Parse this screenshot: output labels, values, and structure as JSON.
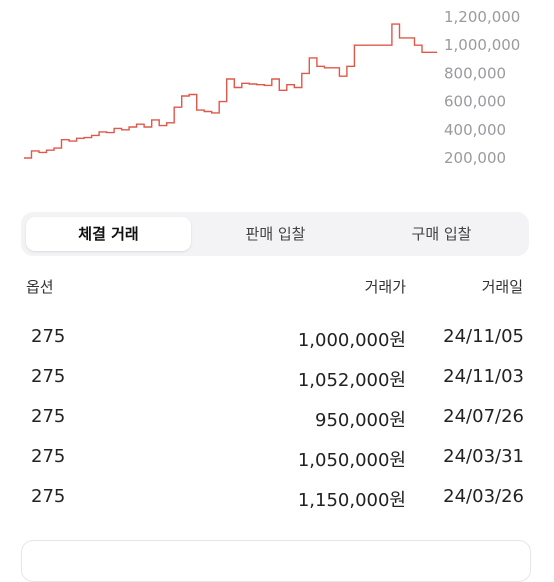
{
  "chart_data": {
    "type": "line",
    "color": "#e0584a",
    "y_ticks": [
      "1,200,000",
      "1,000,000",
      "800,000",
      "600,000",
      "400,000",
      "200,000"
    ],
    "y_tick_values": [
      1200000,
      1000000,
      800000,
      600000,
      400000,
      200000
    ],
    "ylim": [
      200000,
      1200000
    ],
    "series": [
      {
        "values": [
          200000,
          250000,
          240000,
          255000,
          270000,
          330000,
          320000,
          340000,
          345000,
          360000,
          385000,
          380000,
          410000,
          400000,
          420000,
          440000,
          420000,
          470000,
          430000,
          450000,
          560000,
          640000,
          650000,
          540000,
          530000,
          520000,
          600000,
          760000,
          700000,
          730000,
          725000,
          720000,
          715000,
          760000,
          680000,
          720000,
          700000,
          800000,
          910000,
          850000,
          840000,
          840000,
          780000,
          850000,
          1000000,
          1000000,
          1000000,
          1000000,
          1000000,
          1150000,
          1052000,
          1052000,
          1000000,
          950000,
          950000,
          950000
        ]
      }
    ]
  },
  "tabs": [
    {
      "label": "체결 거래",
      "active": true
    },
    {
      "label": "판매 입찰",
      "active": false
    },
    {
      "label": "구매 입찰",
      "active": false
    }
  ],
  "table": {
    "headers": {
      "option": "옵션",
      "price": "거래가",
      "date": "거래일"
    },
    "rows": [
      {
        "option": "275",
        "price": "1,000,000원",
        "date": "24/11/05"
      },
      {
        "option": "275",
        "price": "1,052,000원",
        "date": "24/11/03"
      },
      {
        "option": "275",
        "price": "950,000원",
        "date": "24/07/26"
      },
      {
        "option": "275",
        "price": "1,050,000원",
        "date": "24/03/31"
      },
      {
        "option": "275",
        "price": "1,150,000원",
        "date": "24/03/26"
      }
    ]
  }
}
